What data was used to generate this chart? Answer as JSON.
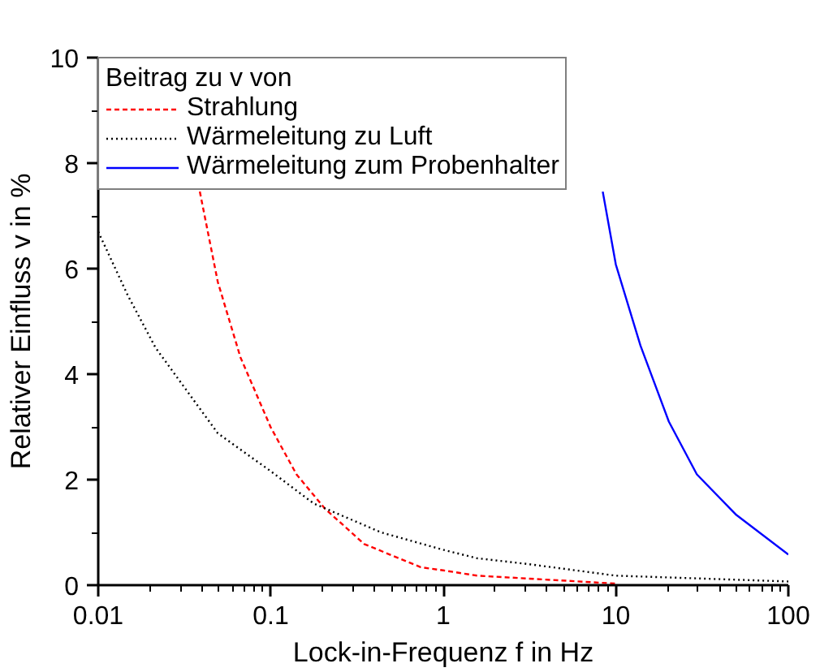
{
  "chart_data": {
    "type": "line",
    "xlabel": "Lock-in-Frequenz f in Hz",
    "ylabel": "Relativer Einfluss v in %",
    "legend_title": "Beitrag zu v von",
    "log": "x",
    "xlim": [
      0.01,
      100
    ],
    "xticks": [
      0.01,
      0.1,
      1,
      10,
      100
    ],
    "ylim": [
      0,
      10
    ],
    "yticks": [
      0,
      2,
      4,
      6,
      8,
      10
    ],
    "grid": false,
    "legend": "top left",
    "marker": "none",
    "series": [
      {
        "name": "Strahlung",
        "color": "#ff0000",
        "line_style": "dashed",
        "x": [
          0.0388,
          0.0493,
          0.0667,
          0.1,
          0.141,
          0.206,
          0.348,
          0.74,
          1,
          1.57,
          10
        ],
        "values": [
          7.46,
          5.75,
          4.32,
          2.99,
          2.1,
          1.45,
          0.78,
          0.34,
          0.28,
          0.18,
          0.03
        ]
      },
      {
        "name": "Wärmeleitung zu Luft",
        "color": "#000000",
        "line_style": "dotted",
        "x": [
          0.01,
          0.0148,
          0.0215,
          0.0314,
          0.0493,
          0.1,
          0.177,
          0.436,
          1,
          1.57,
          3.1,
          10,
          100
        ],
        "values": [
          6.7,
          5.5,
          4.5,
          3.76,
          2.88,
          2.16,
          1.55,
          1.0,
          0.67,
          0.51,
          0.4,
          0.18,
          0.07
        ]
      },
      {
        "name": "Wärmeleitung zum Probenhalter",
        "color": "#0000ff",
        "line_style": "solid",
        "x": [
          8.4,
          10,
          13.9,
          20.3,
          29.5,
          50,
          100
        ],
        "values": [
          7.46,
          6.08,
          4.54,
          3.1,
          2.1,
          1.33,
          0.58
        ]
      }
    ]
  }
}
